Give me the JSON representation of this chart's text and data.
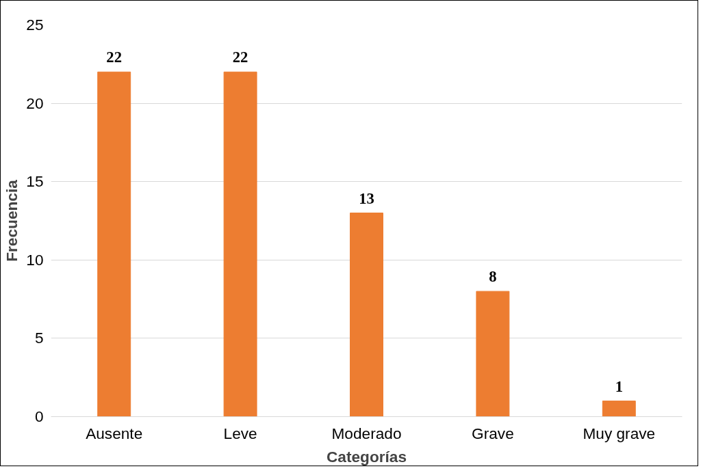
{
  "chart_data": {
    "type": "bar",
    "xlabel": "Categorías",
    "ylabel": "Frecuencia",
    "categories": [
      "Ausente",
      "Leve",
      "Moderado",
      "Grave",
      "Muy grave"
    ],
    "values": [
      22,
      22,
      13,
      8,
      1
    ],
    "color": "#ed7d31",
    "ylim": [
      0,
      25
    ],
    "yticks": [
      0,
      5,
      10,
      15,
      20,
      25
    ],
    "grid": "y",
    "data_labels": true
  }
}
